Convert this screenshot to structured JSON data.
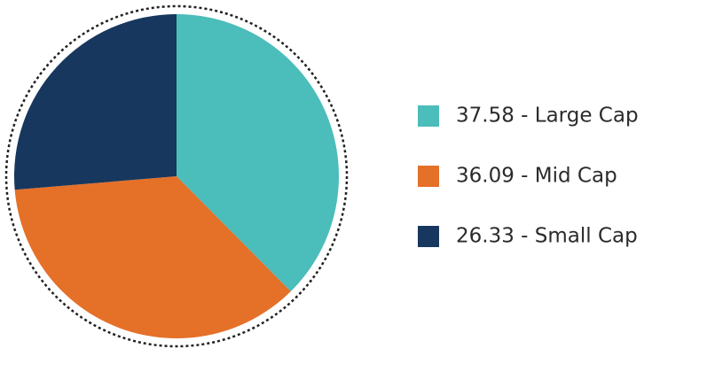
{
  "chart_data": {
    "type": "pie",
    "categories": [
      "37.58 - Large Cap",
      "36.09 - Mid Cap",
      "26.33 - Small Cap"
    ],
    "values": [
      37.58,
      36.09,
      26.33
    ],
    "colors": [
      "#4bbdbb",
      "#e57028",
      "#17375e"
    ],
    "legend": "right"
  }
}
